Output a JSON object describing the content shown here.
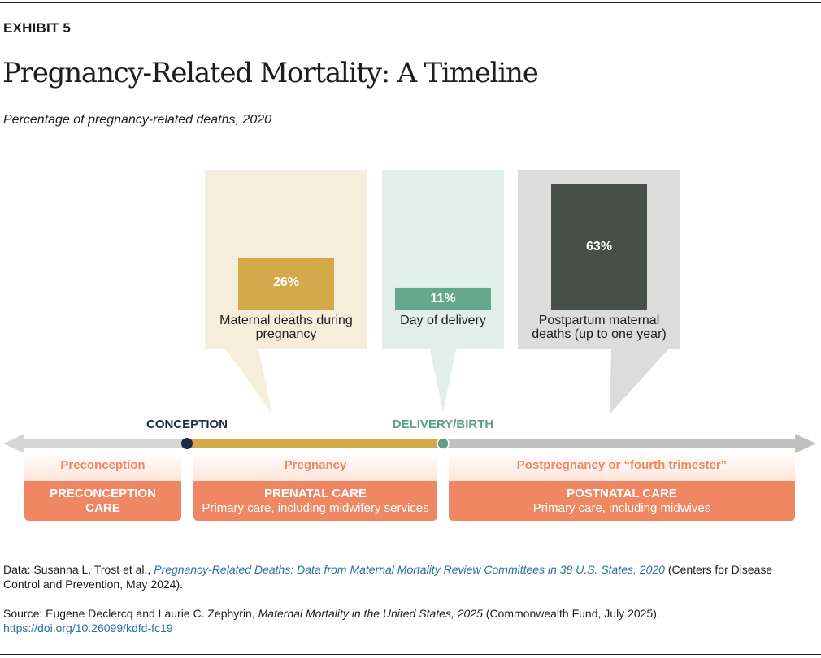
{
  "header": {
    "exhibit": "EXHIBIT 5",
    "title": "Pregnancy-Related Mortality: A Timeline",
    "subtitle": "Percentage of pregnancy-related deaths, 2020"
  },
  "chart_data": {
    "type": "bar",
    "title": "Pregnancy-Related Mortality: A Timeline",
    "subtitle": "Percentage of pregnancy-related deaths, 2020",
    "unit": "%",
    "ylim": [
      0,
      63
    ],
    "categories": [
      "Maternal deaths during pregnancy",
      "Day of delivery",
      "Postpartum maternal deaths (up to one year)"
    ],
    "values": [
      26,
      11,
      63
    ],
    "value_labels": [
      "26%",
      "11%",
      "63%"
    ],
    "label_lines": [
      [
        "Maternal deaths during",
        "pregnancy"
      ],
      [
        "Day of delivery"
      ],
      [
        "Postpartum maternal",
        "deaths (up to one year)"
      ]
    ],
    "colors": {
      "pregnancy_bar": "#d4a94a",
      "pregnancy_panel": "#f6edda",
      "delivery_bar": "#65a88e",
      "delivery_panel": "#e1eeea",
      "postpartum_bar": "#484e48",
      "postpartum_panel": "#dcdcdc"
    }
  },
  "timeline": {
    "milestones": [
      {
        "label": "CONCEPTION",
        "color": "#1b2a44"
      },
      {
        "label": "DELIVERY/BIRTH",
        "color": "#5c9e86"
      }
    ],
    "segment_colors": {
      "before": "#d6d6d6",
      "pregnancy": "#d4a94a",
      "after": "#c0c0c0"
    },
    "phases": [
      {
        "label": "Preconception",
        "care_title_lines": [
          "PRECONCEPTION",
          "CARE"
        ],
        "care_subtitle": ""
      },
      {
        "label": "Pregnancy",
        "care_title_lines": [
          "PRENATAL CARE"
        ],
        "care_subtitle": "Primary care, including midwifery services"
      },
      {
        "label": "Postpregnancy  or “fourth trimester”",
        "care_title_lines": [
          "POSTNATAL CARE"
        ],
        "care_subtitle": "Primary care, including midwives"
      }
    ],
    "care_color": "#ef8763"
  },
  "footnotes": {
    "data_prefix": "Data: Susanna L. Trost et al., ",
    "data_link": "Pregnancy-Related Deaths: Data from Maternal Mortality Review Committees in 38 U.S. States, 2020",
    "data_suffix": " (Centers for Disease Control and Prevention, May 2024).",
    "source_prefix": "Source: Eugene Declercq and Laurie C. Zephyrin, ",
    "source_title": "Maternal Mortality in the United States, 2025",
    "source_suffix": " (Commonwealth Fund, July 2025).",
    "source_url": "https://doi.org/10.26099/kdfd-fc19"
  }
}
